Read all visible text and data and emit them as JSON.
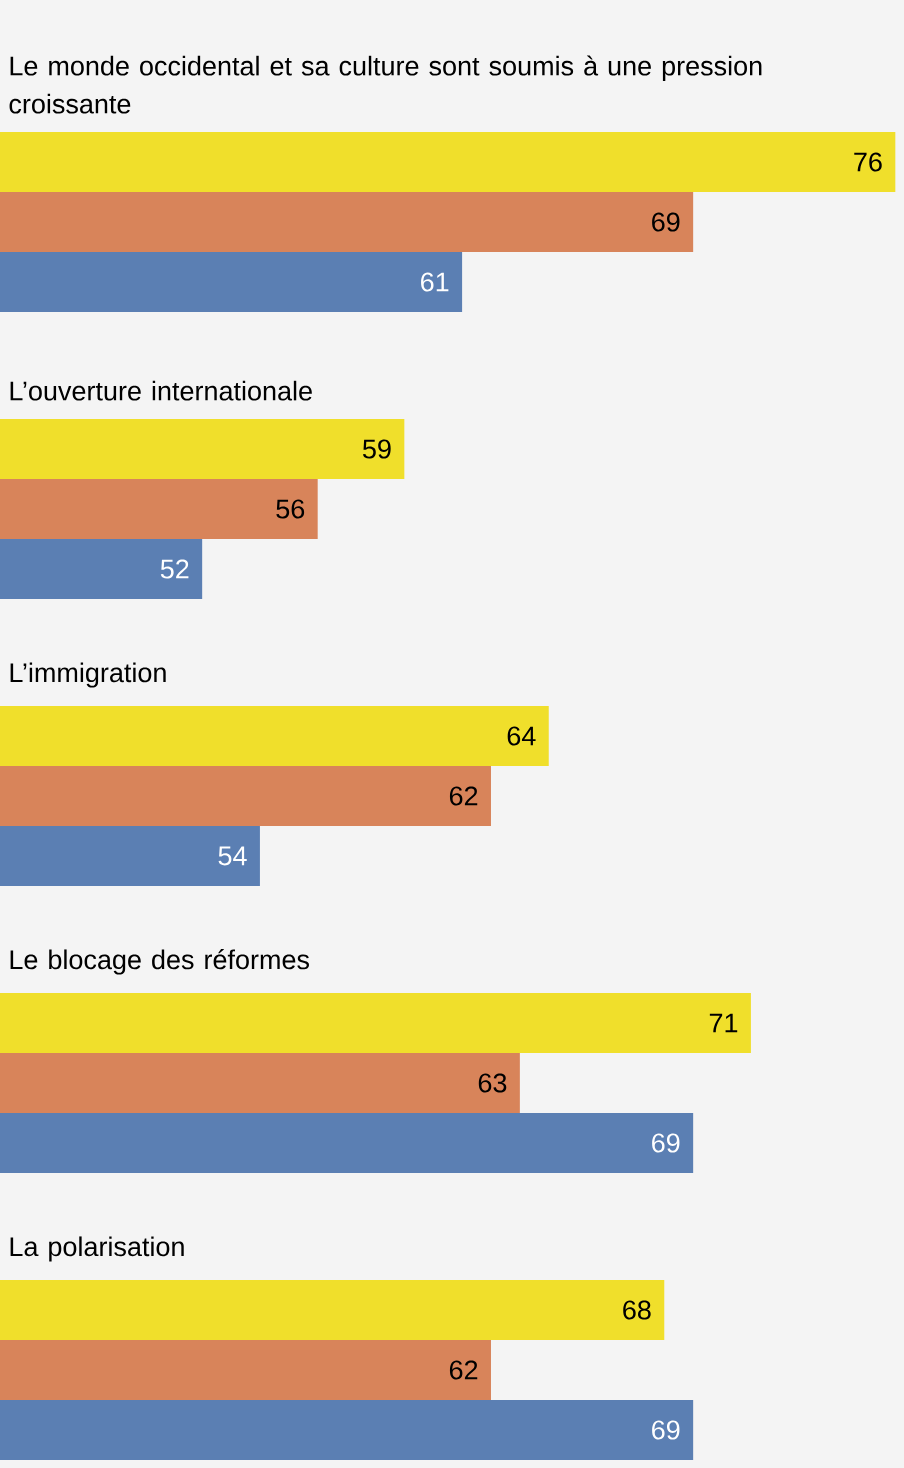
{
  "chart_data": {
    "type": "bar",
    "orientation": "horizontal",
    "categories": [
      "Le monde occidental et sa culture sont soumis à une pression croissante",
      "L’ouverture internationale",
      "L’immigration",
      "Le blocage des réformes",
      "La polarisation"
    ],
    "series": [
      {
        "color": "#f0df2b",
        "values": [
          76,
          59,
          64,
          71,
          68
        ]
      },
      {
        "color": "#d8845a",
        "values": [
          69,
          56,
          62,
          63,
          62
        ]
      },
      {
        "color": "#5b7fb3",
        "values": [
          61,
          52,
          54,
          69,
          69
        ]
      }
    ],
    "xlim": [
      45,
      76.3
    ],
    "data_labels": true
  }
}
